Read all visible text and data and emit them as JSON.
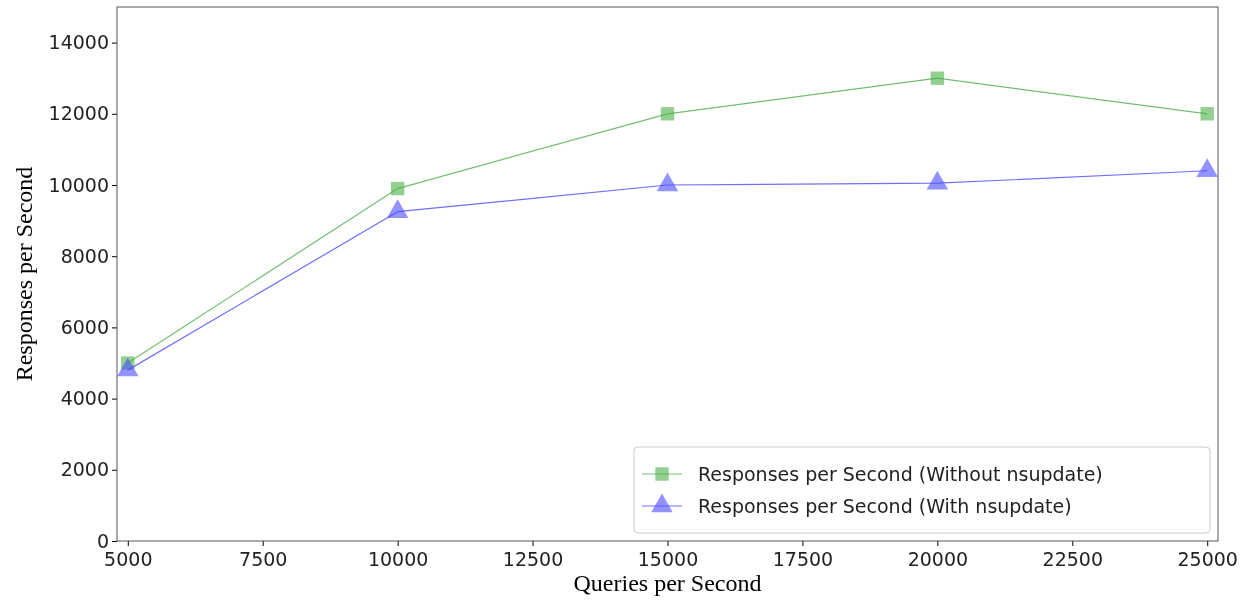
{
  "chart_data": {
    "type": "line",
    "xlabel": "Queries per Second",
    "ylabel": "Responses per Second",
    "x": [
      5000,
      10000,
      15000,
      20000,
      25000
    ],
    "series": [
      {
        "name": "Responses per Second (Without nsupdate)",
        "color": "#4daf4a",
        "marker": "square",
        "values": [
          5000,
          9900,
          12000,
          13000,
          12000
        ]
      },
      {
        "name": "Responses per Second (With nsupdate)",
        "color": "#4b4bff",
        "marker": "triangle",
        "values": [
          4800,
          9250,
          10000,
          10050,
          10400
        ]
      }
    ],
    "xlim": [
      4800,
      25200
    ],
    "xticks": [
      5000,
      7500,
      10000,
      12500,
      15000,
      17500,
      20000,
      22500,
      25000
    ],
    "ylim": [
      0,
      15000
    ],
    "yticks": [
      0,
      2000,
      4000,
      6000,
      8000,
      10000,
      12000,
      14000
    ],
    "legend": "bottom right",
    "grid": false
  }
}
